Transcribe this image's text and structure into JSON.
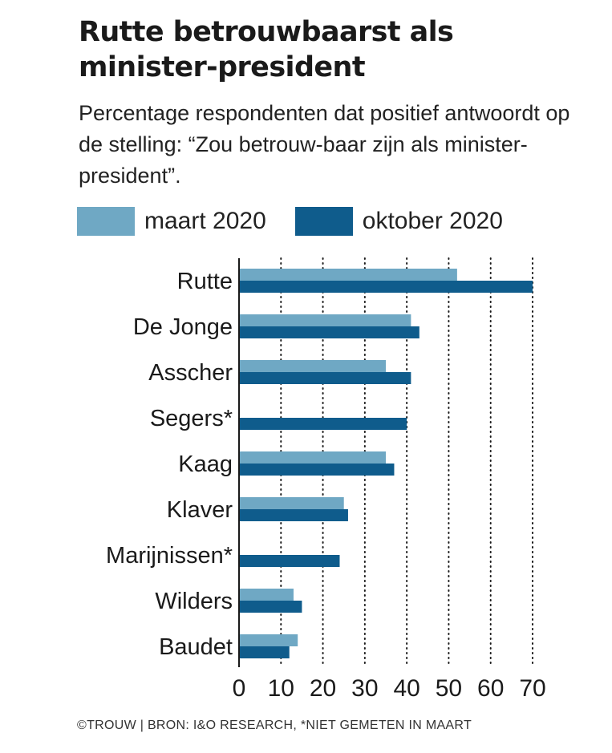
{
  "header": {
    "title": "Rutte betrouwbaarst als minister-president",
    "subtitle": "Percentage respondenten dat positief antwoordt op de stelling: “Zou betrouw-baar zijn als minister-president”."
  },
  "legend": {
    "items": [
      {
        "label": "maart 2020",
        "color": "#6fa8c4"
      },
      {
        "label": "oktober 2020",
        "color": "#0f5c8c"
      }
    ]
  },
  "footer": {
    "credit": "©TROUW | BRON: I&O RESEARCH, *NIET GEMETEN IN MAART"
  },
  "chart_data": {
    "type": "bar",
    "orientation": "horizontal",
    "title": "Rutte betrouwbaarst als minister-president",
    "xlabel": "",
    "ylabel": "",
    "xlim": [
      0,
      70
    ],
    "xticks": [
      0,
      10,
      20,
      30,
      40,
      50,
      60,
      70
    ],
    "grid": "vertical dotted",
    "legend_position": "top",
    "categories": [
      "Rutte",
      "De Jonge",
      "Asscher",
      "Segers*",
      "Kaag",
      "Klaver",
      "Marijnissen*",
      "Wilders",
      "Baudet"
    ],
    "series": [
      {
        "name": "maart 2020",
        "color": "#6fa8c4",
        "values": [
          52,
          41,
          35,
          null,
          35,
          25,
          null,
          13,
          14
        ]
      },
      {
        "name": "oktober 2020",
        "color": "#0f5c8c",
        "values": [
          70,
          43,
          41,
          40,
          37,
          26,
          24,
          15,
          12
        ]
      }
    ]
  }
}
